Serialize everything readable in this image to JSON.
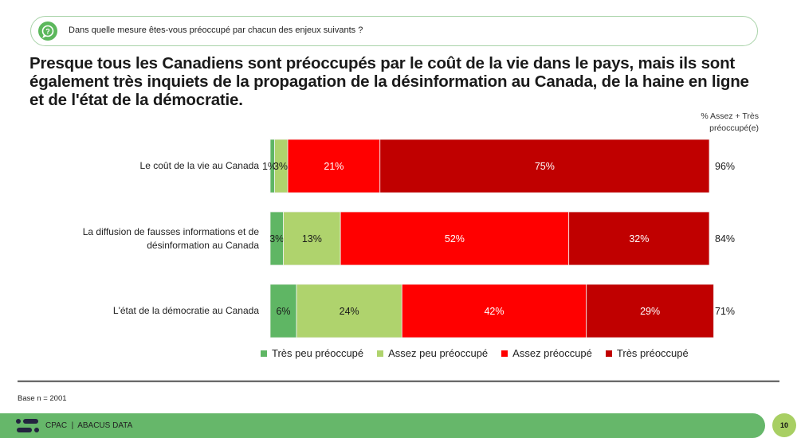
{
  "question": {
    "icon": "question-bubble-icon",
    "text": "Dans quelle mesure êtes-vous préoccupé par chacun des enjeux suivants ?"
  },
  "headline": "Presque tous les Canadiens sont préoccupés par le coût de la vie dans le pays, mais ils sont également très inquiets de la propagation de la désinformation au Canada, de la haine en ligne et de l'état de la démocratie.",
  "total_header": [
    "% Assez + Très",
    "préoccupé(e)"
  ],
  "chart_data": {
    "type": "bar",
    "orientation": "horizontal",
    "stacked": true,
    "categories": [
      [
        "Le coût de la vie au Canada"
      ],
      [
        "La diffusion de fausses informations et de",
        "désinformation au Canada"
      ],
      [
        "L'état de la démocratie au Canada"
      ]
    ],
    "series": [
      {
        "name": "Très peu préoccupé",
        "color": "#5fb664",
        "values": [
          1,
          3,
          6
        ],
        "label_color": "#1a1a1a"
      },
      {
        "name": "Assez peu préoccupé",
        "color": "#afd36d",
        "values": [
          3,
          13,
          24
        ],
        "label_color": "#1a1a1a"
      },
      {
        "name": "Assez préoccupé",
        "color": "#ff0000",
        "values": [
          21,
          52,
          42
        ],
        "label_color": "#ffffff"
      },
      {
        "name": "Très préoccupé",
        "color": "#c00000",
        "values": [
          75,
          32,
          29
        ],
        "label_color": "#ffffff"
      }
    ],
    "data_labels": [
      [
        "1%",
        "3%",
        "21%",
        "75%"
      ],
      [
        "3%",
        "13%",
        "52%",
        "32%"
      ],
      [
        "6%",
        "24%",
        "42%",
        "29%"
      ]
    ],
    "totals": [
      "96%",
      "84%",
      "71%"
    ],
    "totals_title": "% Assez + Très préoccupé(e)",
    "xlim": [
      0,
      100
    ],
    "grid": false,
    "legend_position": "bottom"
  },
  "base_note": "Base n = 2001",
  "footer": {
    "logo": "abacus-logo-icon",
    "text": "CPAC  |  ABACUS DATA",
    "page_number": "10"
  }
}
